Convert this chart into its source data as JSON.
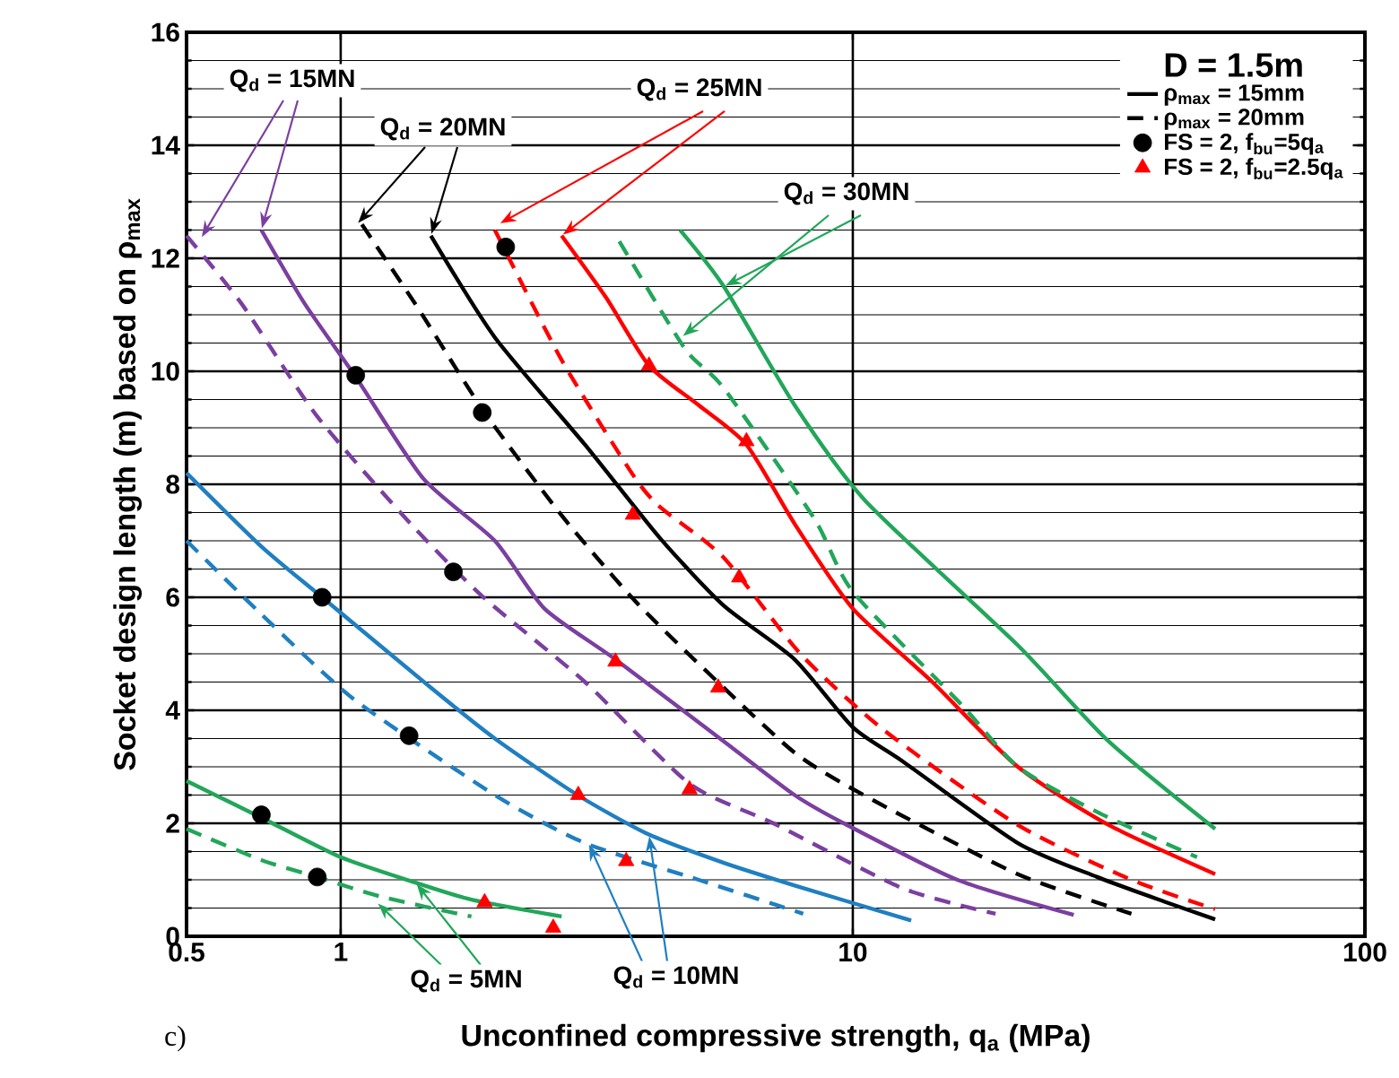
{
  "chart_data": {
    "type": "line",
    "xlabel": "Unconfined compressive strength, q$_{a}$  (MPa)",
    "ylabel": "Socket  design length (m) based on ρ$_{max}$",
    "legend_title": "D = 1.5m",
    "log": "x",
    "grid": true,
    "legend": "top right",
    "xlim": [
      0.5,
      100
    ],
    "ylim": [
      0,
      16
    ],
    "xticks": [
      0.5,
      1,
      10,
      100
    ],
    "yticks": [
      0,
      2,
      4,
      6,
      8,
      10,
      12,
      14,
      16
    ],
    "series": [
      {
        "color": "#22a65a",
        "line_style": "solid",
        "x": [
          0.5,
          0.7,
          1,
          1.4,
          1.8,
          2.7
        ],
        "values": [
          2.75,
          2.1,
          1.4,
          0.95,
          0.65,
          0.35
        ]
      },
      {
        "color": "#22a65a",
        "line_style": "dashed",
        "x": [
          0.5,
          0.7,
          0.9,
          1.2,
          1.8
        ],
        "values": [
          1.9,
          1.35,
          1.05,
          0.7,
          0.35
        ]
      },
      {
        "color": "#1f7fc1",
        "line_style": "solid",
        "x": [
          0.5,
          0.7,
          0.92,
          1.5,
          2,
          2.9,
          4,
          5.6,
          7.7,
          13
        ],
        "values": [
          8.2,
          6.9,
          6.0,
          4.4,
          3.5,
          2.5,
          1.8,
          1.3,
          0.9,
          0.28
        ]
      },
      {
        "color": "#1f7fc1",
        "line_style": "dashed",
        "x": [
          0.5,
          0.7,
          1.06,
          2,
          3,
          5,
          8
        ],
        "values": [
          7.0,
          5.7,
          4.2,
          2.5,
          1.65,
          1.0,
          0.4
        ]
      },
      {
        "color": "#7b3fa0",
        "line_style": "solid",
        "x": [
          0.7,
          0.85,
          1.07,
          1.45,
          2,
          2.5,
          3.44,
          5.6,
          7.7,
          9.6,
          16,
          27
        ],
        "values": [
          12.5,
          11.2,
          9.9,
          8.1,
          7.0,
          5.8,
          4.9,
          3.45,
          2.5,
          2.0,
          1.0,
          0.38
        ]
      },
      {
        "color": "#7b3fa0",
        "line_style": "dashed",
        "x": [
          0.5,
          0.64,
          0.9,
          1.37,
          1.9,
          3,
          4.8,
          7,
          12.5,
          19
        ],
        "values": [
          12.4,
          11.2,
          9.2,
          7.3,
          6.0,
          4.5,
          2.7,
          2.0,
          0.85,
          0.4
        ]
      },
      {
        "name": "ρ$_{max}$ = 15mm",
        "color": "#000000",
        "line_style": "solid",
        "x": [
          1.5,
          2,
          3,
          4.2,
          5.6,
          7.7,
          10,
          12.5,
          21,
          30,
          41,
          51
        ],
        "values": [
          12.4,
          10.6,
          8.7,
          7.05,
          5.85,
          4.9,
          3.7,
          3.1,
          1.65,
          1.05,
          0.6,
          0.3
        ]
      },
      {
        "name": "ρ$_{max}$ = 20mm",
        "color": "#000000",
        "line_style": "dashed",
        "x": [
          1.1,
          1.42,
          1.9,
          2.7,
          3.7,
          4.9,
          7.7,
          11,
          21,
          35
        ],
        "values": [
          12.6,
          11.1,
          9.3,
          7.45,
          6.0,
          4.9,
          3.25,
          2.4,
          1.1,
          0.4
        ]
      },
      {
        "color": "#ff0000",
        "line_style": "solid",
        "x": [
          2.7,
          3.3,
          4,
          5,
          6.2,
          7.7,
          10,
          14.3,
          21,
          31.6,
          51
        ],
        "values": [
          12.4,
          11.3,
          10.1,
          9.4,
          8.7,
          7.3,
          5.8,
          4.5,
          3.0,
          1.97,
          1.1
        ]
      },
      {
        "color": "#ff0000",
        "line_style": "dashed",
        "x": [
          2.0,
          2.7,
          3.7,
          4.2,
          5.6,
          7.9,
          11.5,
          21,
          35,
          51
        ],
        "values": [
          12.5,
          10.2,
          8.2,
          7.6,
          6.7,
          5.0,
          3.65,
          1.97,
          1.0,
          0.48
        ]
      },
      {
        "color": "#22a65a",
        "line_style": "solid",
        "x": [
          4.6,
          5.6,
          7.7,
          10.6,
          21,
          31.6,
          51
        ],
        "values": [
          12.5,
          11.5,
          9.4,
          7.7,
          5.15,
          3.45,
          1.9
        ]
      },
      {
        "color": "#22a65a",
        "line_style": "dashed",
        "x": [
          3.5,
          4.7,
          5.6,
          8.4,
          10,
          16.3,
          21,
          30,
          47
        ],
        "values": [
          12.3,
          10.4,
          9.7,
          7.4,
          6.1,
          4.1,
          3.0,
          2.2,
          1.4
        ]
      },
      {
        "name": "FS = 2, f$_{bu}$=5q$_{a}$",
        "type": "scatter",
        "marker": "circle",
        "color": "#000000",
        "x": [
          0.7,
          0.9,
          1.36,
          0.92,
          1.66,
          1.07,
          1.89,
          2.1
        ],
        "values": [
          2.15,
          1.05,
          3.55,
          6.0,
          6.45,
          9.93,
          9.27,
          12.2
        ]
      },
      {
        "name": "FS = 2, f$_{bu}$=2.5q$_{a}$",
        "type": "scatter",
        "marker": "triangle",
        "color": "#ff0000",
        "x": [
          1.91,
          2.6,
          2.91,
          3.61,
          4.8,
          3.44,
          5.46,
          6.0,
          3.72,
          4.0,
          6.2
        ],
        "values": [
          0.6,
          0.15,
          2.5,
          1.33,
          2.6,
          4.86,
          4.4,
          6.35,
          7.46,
          10.1,
          8.76
        ]
      }
    ],
    "annotations": [
      {
        "text": "Q$_{d}$ = 15MN",
        "x": 0.7,
        "y": 12.5
      },
      {
        "text": "Q$_{d}$ = 20MN",
        "x": 1.5,
        "y": 12.4
      },
      {
        "text": "Q$_{d}$ = 25MN",
        "x": 2.7,
        "y": 12.4
      },
      {
        "text": "Q$_{d}$ = 30MN",
        "x": 5.6,
        "y": 11.5
      },
      {
        "text": "Q$_{d}$ = 5MN",
        "x": 1.4,
        "y": 0.95
      },
      {
        "text": "Q$_{d}$ = 10MN",
        "x": 4,
        "y": 1.8
      },
      "c)"
    ]
  }
}
